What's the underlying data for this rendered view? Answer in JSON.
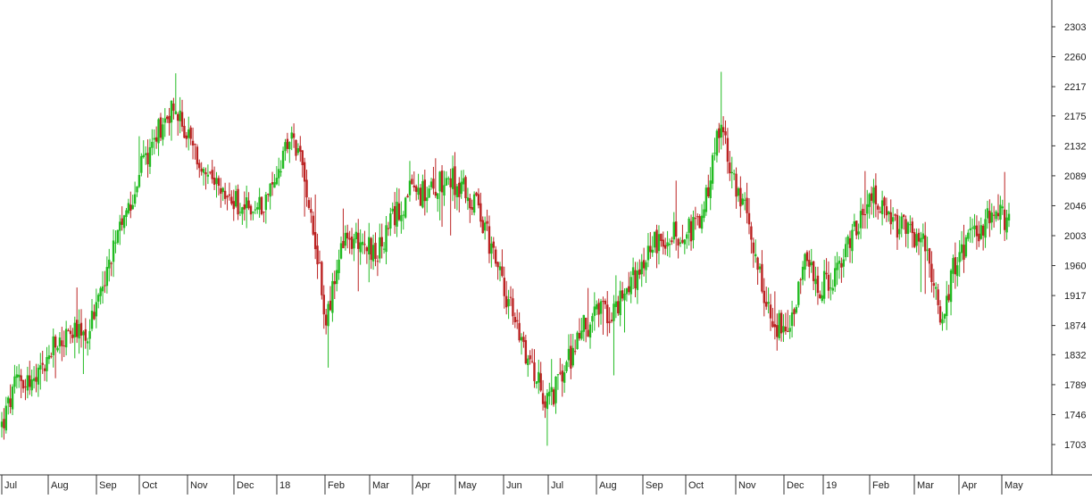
{
  "chart_data": {
    "type": "candlestick",
    "title": "",
    "xlabel": "",
    "ylabel": "",
    "ylim": [
      1660,
      2340
    ],
    "y_ticks": [
      1703,
      1746,
      1789,
      1832,
      1874,
      1917,
      1960,
      2003,
      2046,
      2089,
      2132,
      2175,
      2217,
      2260,
      2303
    ],
    "x_month_labels": [
      "Jul",
      "Aug",
      "Sep",
      "Oct",
      "Nov",
      "Dec",
      "18",
      "Feb",
      "Mar",
      "Apr",
      "May",
      "Jun",
      "Jul",
      "Aug",
      "Sep",
      "Oct",
      "Nov",
      "Dec",
      "19",
      "Feb",
      "Mar",
      "Apr",
      "May"
    ],
    "grid": false,
    "colors": {
      "up": "#22bb22",
      "down": "#bb2222",
      "axis": "#333333",
      "background": "#ffffff"
    },
    "series": [
      {
        "name": "",
        "trend": [
          [
            "Jul",
            1730
          ],
          [
            "Jul",
            1800
          ],
          [
            "Aug",
            1790
          ],
          [
            "Aug",
            1840
          ],
          [
            "Aug",
            1862
          ],
          [
            "Sep",
            1860
          ],
          [
            "Sep",
            1940
          ],
          [
            "Sep",
            2010
          ],
          [
            "Oct",
            2090
          ],
          [
            "Oct",
            2150
          ],
          [
            "Oct",
            2190
          ],
          [
            "Nov",
            2140
          ],
          [
            "Nov",
            2080
          ],
          [
            "Nov",
            2060
          ],
          [
            "Dec",
            2045
          ],
          [
            "Dec",
            2040
          ],
          [
            "18",
            2080
          ],
          [
            "18",
            2150
          ],
          [
            "Feb",
            2060
          ],
          [
            "Feb",
            1880
          ],
          [
            "Feb",
            1990
          ],
          [
            "Mar",
            2000
          ],
          [
            "Mar",
            1975
          ],
          [
            "Apr",
            2030
          ],
          [
            "Apr",
            2070
          ],
          [
            "Apr",
            2060
          ],
          [
            "May",
            2090
          ],
          [
            "May",
            2070
          ],
          [
            "May",
            2040
          ],
          [
            "Jun",
            1960
          ],
          [
            "Jun",
            1880
          ],
          [
            "Jun",
            1820
          ],
          [
            "Jul",
            1760
          ],
          [
            "Jul",
            1810
          ],
          [
            "Jul",
            1870
          ],
          [
            "Aug",
            1890
          ],
          [
            "Aug",
            1900
          ],
          [
            "Aug",
            1940
          ],
          [
            "Sep",
            1990
          ],
          [
            "Sep",
            2000
          ],
          [
            "Sep",
            2010
          ],
          [
            "Oct",
            2020
          ],
          [
            "Oct",
            2160
          ],
          [
            "Oct",
            2080
          ],
          [
            "Nov",
            2000
          ],
          [
            "Nov",
            1880
          ],
          [
            "Nov",
            1870
          ],
          [
            "Dec",
            1960
          ],
          [
            "Dec",
            1930
          ],
          [
            "Dec",
            1950
          ],
          [
            "19",
            2010
          ],
          [
            "19",
            2060
          ],
          [
            "Feb",
            2020
          ],
          [
            "Feb",
            2010
          ],
          [
            "Mar",
            1990
          ],
          [
            "Mar",
            1880
          ],
          [
            "Apr",
            1980
          ],
          [
            "Apr",
            2000
          ],
          [
            "May",
            2035
          ],
          [
            "May",
            2025
          ]
        ]
      }
    ]
  }
}
